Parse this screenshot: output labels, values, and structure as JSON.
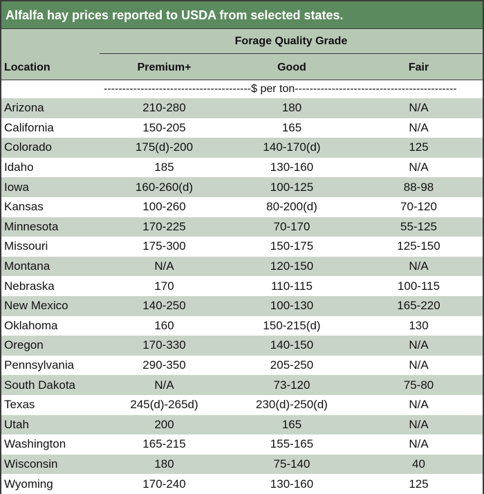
{
  "title": "Alfalfa hay prices reported to USDA from selected states.",
  "grade_header": "Forage Quality Grade",
  "columns": {
    "location": "Location",
    "premium": "Premium+",
    "good": "Good",
    "fair": "Fair"
  },
  "unit_row": "----------------------------------------$ per ton--------------------------------------------",
  "rows": [
    {
      "location": "Arizona",
      "premium": "210-280",
      "good": "180",
      "fair": "N/A"
    },
    {
      "location": "California",
      "premium": "150-205",
      "good": "165",
      "fair": "N/A"
    },
    {
      "location": "Colorado",
      "premium": "175(d)-200",
      "good": "140-170(d)",
      "fair": "125"
    },
    {
      "location": "Idaho",
      "premium": "185",
      "good": "130-160",
      "fair": "N/A"
    },
    {
      "location": "Iowa",
      "premium": "160-260(d)",
      "good": "100-125",
      "fair": "88-98"
    },
    {
      "location": "Kansas",
      "premium": "100-260",
      "good": "80-200(d)",
      "fair": "70-120"
    },
    {
      "location": "Minnesota",
      "premium": "170-225",
      "good": "70-170",
      "fair": "55-125"
    },
    {
      "location": "Missouri",
      "premium": "175-300",
      "good": "150-175",
      "fair": "125-150"
    },
    {
      "location": "Montana",
      "premium": "N/A",
      "good": "120-150",
      "fair": "N/A"
    },
    {
      "location": "Nebraska",
      "premium": "170",
      "good": "110-115",
      "fair": "100-115"
    },
    {
      "location": "New Mexico",
      "premium": "140-250",
      "good": "100-130",
      "fair": "165-220"
    },
    {
      "location": "Oklahoma",
      "premium": "160",
      "good": "150-215(d)",
      "fair": "130"
    },
    {
      "location": "Oregon",
      "premium": "170-330",
      "good": "140-150",
      "fair": "N/A"
    },
    {
      "location": "Pennsylvania",
      "premium": "290-350",
      "good": "205-250",
      "fair": "N/A"
    },
    {
      "location": "South Dakota",
      "premium": "N/A",
      "good": "73-120",
      "fair": "75-80"
    },
    {
      "location": "Texas",
      "premium": "245(d)-265d)",
      "good": "230(d)-250(d)",
      "fair": "N/A"
    },
    {
      "location": "Utah",
      "premium": "200",
      "good": "165",
      "fair": "N/A"
    },
    {
      "location": "Washington",
      "premium": "165-215",
      "good": "155-165",
      "fair": "N/A"
    },
    {
      "location": "Wisconsin",
      "premium": "180",
      "good": "75-140",
      "fair": "40"
    },
    {
      "location": "Wyoming",
      "premium": "170-240",
      "good": "130-160",
      "fair": "125"
    }
  ]
}
